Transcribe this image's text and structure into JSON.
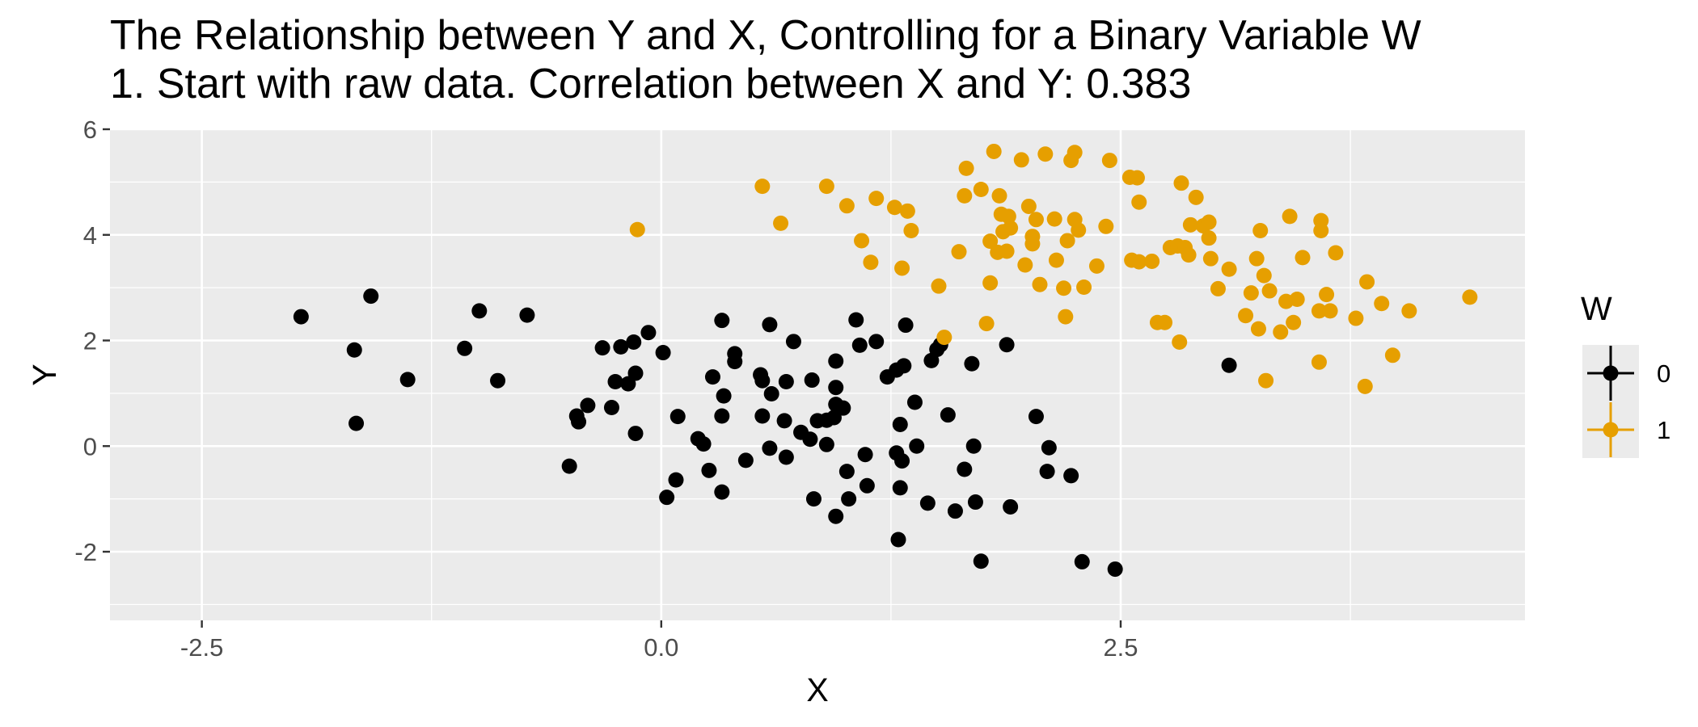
{
  "title": "The Relationship between Y and X, Controlling for a Binary Variable W",
  "subtitle": "1. Start with raw data. Correlation between X and Y: 0.383",
  "colors": {
    "panel_bg": "#ebebeb",
    "grid": "#ffffff",
    "w0": "#000000",
    "w1": "#e69f00"
  },
  "chart_data": {
    "type": "scatter",
    "title": "The Relationship between Y and X, Controlling for a Binary Variable W",
    "subtitle": "1. Start with raw data. Correlation between X and Y: 0.383",
    "xlabel": "X",
    "ylabel": "Y",
    "xlim": [
      -3.0,
      4.7
    ],
    "ylim": [
      -3.3,
      6.0
    ],
    "x_ticks": [
      -2.5,
      0.0,
      2.5
    ],
    "x_tick_labels": [
      "-2.5",
      "0.0",
      "2.5"
    ],
    "y_ticks": [
      -2,
      0,
      2,
      4,
      6
    ],
    "y_tick_labels": [
      "-2",
      "0",
      "2",
      "4",
      "6"
    ],
    "grid": true,
    "legend": {
      "title": "W",
      "position": "right",
      "entries": [
        "0",
        "1"
      ]
    },
    "series": [
      {
        "name": "0",
        "color": "#000000",
        "points": [
          [
            -1.96,
            2.45
          ],
          [
            -1.67,
            1.82
          ],
          [
            -1.58,
            2.84
          ],
          [
            -1.66,
            0.43
          ],
          [
            -1.38,
            1.26
          ],
          [
            -1.07,
            1.85
          ],
          [
            -0.99,
            2.56
          ],
          [
            -0.89,
            1.24
          ],
          [
            -0.73,
            2.48
          ],
          [
            -0.5,
            -0.38
          ],
          [
            -0.46,
            0.57
          ],
          [
            -0.45,
            0.46
          ],
          [
            -0.4,
            0.77
          ],
          [
            -0.32,
            1.86
          ],
          [
            -0.27,
            0.73
          ],
          [
            -0.25,
            1.22
          ],
          [
            -0.22,
            1.88
          ],
          [
            -0.18,
            1.18
          ],
          [
            -0.15,
            1.97
          ],
          [
            -0.14,
            1.38
          ],
          [
            -0.14,
            0.24
          ],
          [
            -0.07,
            2.15
          ],
          [
            0.01,
            1.77
          ],
          [
            0.03,
            -0.97
          ],
          [
            0.08,
            -0.64
          ],
          [
            0.09,
            0.56
          ],
          [
            0.2,
            0.14
          ],
          [
            0.23,
            0.04
          ],
          [
            0.26,
            -0.46
          ],
          [
            0.28,
            1.31
          ],
          [
            0.33,
            2.38
          ],
          [
            0.33,
            0.57
          ],
          [
            0.33,
            -0.87
          ],
          [
            0.34,
            0.95
          ],
          [
            0.4,
            1.75
          ],
          [
            0.4,
            1.6
          ],
          [
            0.46,
            -0.27
          ],
          [
            0.54,
            1.35
          ],
          [
            0.55,
            1.24
          ],
          [
            0.55,
            0.57
          ],
          [
            0.59,
            2.3
          ],
          [
            0.59,
            -0.04
          ],
          [
            0.6,
            0.99
          ],
          [
            0.67,
            0.48
          ],
          [
            0.68,
            1.22
          ],
          [
            0.68,
            -0.21
          ],
          [
            0.72,
            1.98
          ],
          [
            0.76,
            0.26
          ],
          [
            0.81,
            0.13
          ],
          [
            0.82,
            1.25
          ],
          [
            0.83,
            -1.0
          ],
          [
            0.85,
            0.48
          ],
          [
            0.9,
            0.49
          ],
          [
            0.9,
            0.03
          ],
          [
            0.94,
            0.54
          ],
          [
            0.95,
            1.61
          ],
          [
            0.95,
            1.11
          ],
          [
            0.95,
            0.79
          ],
          [
            0.95,
            -1.33
          ],
          [
            0.99,
            0.72
          ],
          [
            1.01,
            -0.48
          ],
          [
            1.02,
            -1.0
          ],
          [
            1.06,
            2.39
          ],
          [
            1.08,
            1.91
          ],
          [
            1.11,
            -0.16
          ],
          [
            1.12,
            -0.75
          ],
          [
            1.17,
            1.98
          ],
          [
            1.23,
            1.31
          ],
          [
            1.28,
            1.44
          ],
          [
            1.28,
            -0.13
          ],
          [
            1.29,
            -1.77
          ],
          [
            1.3,
            0.41
          ],
          [
            1.3,
            -0.79
          ],
          [
            1.31,
            -0.28
          ],
          [
            1.32,
            1.52
          ],
          [
            1.33,
            2.29
          ],
          [
            1.38,
            0.83
          ],
          [
            1.39,
            0.0
          ],
          [
            1.45,
            -1.08
          ],
          [
            1.47,
            1.62
          ],
          [
            1.5,
            1.83
          ],
          [
            1.52,
            1.92
          ],
          [
            1.56,
            0.59
          ],
          [
            1.6,
            -1.23
          ],
          [
            1.65,
            -0.44
          ],
          [
            1.69,
            1.56
          ],
          [
            1.7,
            0.0
          ],
          [
            1.71,
            -1.06
          ],
          [
            1.74,
            -2.18
          ],
          [
            1.88,
            1.92
          ],
          [
            1.9,
            -1.15
          ],
          [
            2.04,
            0.56
          ],
          [
            2.1,
            -0.48
          ],
          [
            2.11,
            -0.03
          ],
          [
            2.23,
            -0.56
          ],
          [
            2.29,
            -2.19
          ],
          [
            2.47,
            -2.33
          ],
          [
            3.09,
            1.53
          ]
        ]
      },
      {
        "name": "1",
        "color": "#e69f00",
        "points": [
          [
            -0.13,
            4.1
          ],
          [
            0.55,
            4.92
          ],
          [
            0.65,
            4.22
          ],
          [
            0.9,
            4.92
          ],
          [
            1.01,
            4.55
          ],
          [
            1.09,
            3.89
          ],
          [
            1.14,
            3.48
          ],
          [
            1.17,
            4.69
          ],
          [
            1.27,
            4.52
          ],
          [
            1.31,
            3.37
          ],
          [
            1.34,
            4.45
          ],
          [
            1.36,
            4.08
          ],
          [
            1.51,
            3.03
          ],
          [
            1.54,
            2.06
          ],
          [
            1.62,
            3.68
          ],
          [
            1.65,
            4.74
          ],
          [
            1.66,
            5.26
          ],
          [
            1.74,
            4.86
          ],
          [
            1.77,
            2.32
          ],
          [
            1.79,
            3.09
          ],
          [
            1.79,
            3.88
          ],
          [
            1.81,
            5.58
          ],
          [
            1.83,
            3.67
          ],
          [
            1.84,
            4.74
          ],
          [
            1.85,
            4.39
          ],
          [
            1.86,
            4.06
          ],
          [
            1.88,
            3.69
          ],
          [
            1.89,
            4.35
          ],
          [
            1.9,
            4.13
          ],
          [
            1.96,
            5.42
          ],
          [
            1.98,
            3.43
          ],
          [
            2.0,
            4.54
          ],
          [
            2.02,
            3.97
          ],
          [
            2.02,
            3.83
          ],
          [
            2.04,
            4.29
          ],
          [
            2.06,
            3.06
          ],
          [
            2.09,
            5.53
          ],
          [
            2.14,
            4.3
          ],
          [
            2.15,
            3.52
          ],
          [
            2.19,
            2.99
          ],
          [
            2.2,
            2.45
          ],
          [
            2.21,
            3.89
          ],
          [
            2.23,
            5.41
          ],
          [
            2.25,
            5.56
          ],
          [
            2.25,
            4.29
          ],
          [
            2.27,
            4.09
          ],
          [
            2.3,
            3.01
          ],
          [
            2.37,
            3.41
          ],
          [
            2.42,
            4.16
          ],
          [
            2.44,
            5.41
          ],
          [
            2.55,
            5.09
          ],
          [
            2.56,
            3.52
          ],
          [
            2.59,
            5.08
          ],
          [
            2.6,
            4.62
          ],
          [
            2.6,
            3.49
          ],
          [
            2.67,
            3.5
          ],
          [
            2.7,
            2.34
          ],
          [
            2.74,
            2.34
          ],
          [
            2.77,
            3.76
          ],
          [
            2.81,
            3.79
          ],
          [
            2.82,
            1.97
          ],
          [
            2.83,
            4.98
          ],
          [
            2.85,
            3.76
          ],
          [
            2.87,
            3.62
          ],
          [
            2.88,
            4.19
          ],
          [
            2.91,
            4.71
          ],
          [
            2.95,
            4.17
          ],
          [
            2.98,
            4.24
          ],
          [
            2.98,
            3.94
          ],
          [
            2.99,
            3.55
          ],
          [
            3.03,
            2.98
          ],
          [
            3.09,
            3.35
          ],
          [
            3.18,
            2.47
          ],
          [
            3.21,
            2.9
          ],
          [
            3.24,
            3.55
          ],
          [
            3.25,
            2.22
          ],
          [
            3.26,
            4.08
          ],
          [
            3.28,
            3.23
          ],
          [
            3.29,
            1.24
          ],
          [
            3.31,
            2.94
          ],
          [
            3.37,
            2.16
          ],
          [
            3.4,
            2.74
          ],
          [
            3.42,
            4.35
          ],
          [
            3.44,
            2.34
          ],
          [
            3.46,
            2.78
          ],
          [
            3.49,
            3.57
          ],
          [
            3.58,
            2.56
          ],
          [
            3.58,
            1.59
          ],
          [
            3.59,
            4.27
          ],
          [
            3.59,
            4.08
          ],
          [
            3.62,
            2.87
          ],
          [
            3.64,
            2.56
          ],
          [
            3.67,
            3.66
          ],
          [
            3.78,
            2.42
          ],
          [
            3.83,
            1.13
          ],
          [
            3.84,
            3.11
          ],
          [
            3.92,
            2.7
          ],
          [
            3.98,
            1.72
          ],
          [
            4.07,
            2.56
          ],
          [
            4.4,
            2.82
          ]
        ]
      }
    ]
  }
}
